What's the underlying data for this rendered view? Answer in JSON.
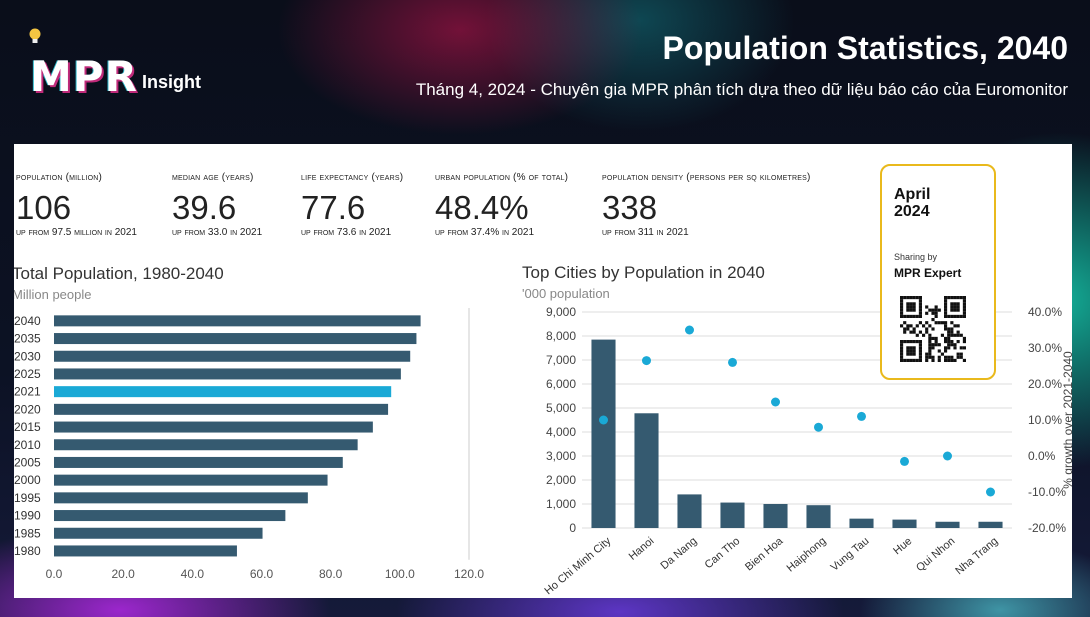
{
  "header": {
    "logo_text": "MPR",
    "logo_sub": "Insight",
    "title": "Population Statistics, 2040",
    "subtitle": "Tháng 4, 2024 - Chuyên gia MPR phân tích dựa theo dữ liệu báo cáo của Euromonitor"
  },
  "stats": [
    {
      "label": "Population (million)",
      "value": "106",
      "note": "Up from 97.5 million in 2021"
    },
    {
      "label": "Median Age (years)",
      "value": "39.6",
      "note": "Up from 33.0 in 2021"
    },
    {
      "label": "Life Expectancy (years)",
      "value": "77.6",
      "note": "Up from 73.6 in 2021"
    },
    {
      "label": "Urban population (% of total)",
      "value": "48.4%",
      "note": "Up from 37.4% in 2021"
    },
    {
      "label": "Population density (persons per sq kilometres)",
      "value": "338",
      "note": "Up from 311 in 2021"
    }
  ],
  "card": {
    "month": "April",
    "year": "2024",
    "sharing": "Sharing by",
    "expert": "MPR Expert"
  },
  "colors": {
    "bar": "#355a70",
    "highlight": "#1aa9d6",
    "dot": "#1aa9d6",
    "card_border": "#e9b91c",
    "grid": "#dddddd"
  },
  "chart_data": [
    {
      "type": "bar",
      "orientation": "horizontal",
      "title": "Total Population, 1980-2040",
      "subtitle": "Million people",
      "categories": [
        "2040",
        "2035",
        "2030",
        "2025",
        "2021",
        "2020",
        "2015",
        "2010",
        "2005",
        "2000",
        "1995",
        "1990",
        "1985",
        "1980"
      ],
      "values": [
        106,
        104.8,
        103,
        100.3,
        97.5,
        96.6,
        92.2,
        87.8,
        83.5,
        79.1,
        73.4,
        66.9,
        60.3,
        52.9
      ],
      "highlight_category": "2021",
      "xticks": [
        "0.0",
        "20.0",
        "40.0",
        "60.0",
        "80.0",
        "100.0",
        "120.0"
      ],
      "xlim": [
        0,
        120
      ]
    },
    {
      "type": "bar",
      "title": "Top Cities by Population in 2040",
      "subtitle": "'000 population",
      "categories": [
        "Ho Chi Minh City",
        "Hanoi",
        "Da Nang",
        "Can Tho",
        "Bien Hoa",
        "Haiphong",
        "Vung Tau",
        "Hue",
        "Qui Nhon",
        "Nha Trang"
      ],
      "series": [
        {
          "axis": "left",
          "type": "bar",
          "values": [
            7850,
            4780,
            1400,
            1060,
            1000,
            950,
            390,
            350,
            260,
            260
          ]
        },
        {
          "axis": "right",
          "type": "scatter",
          "values": [
            10.0,
            26.5,
            35.0,
            26.0,
            15.0,
            8.0,
            11.0,
            -1.5,
            0.0,
            -10.0
          ]
        }
      ],
      "yticks_left": [
        "0",
        "1,000",
        "2,000",
        "3,000",
        "4,000",
        "5,000",
        "6,000",
        "7,000",
        "8,000",
        "9,000"
      ],
      "ylim_left": [
        0,
        9000
      ],
      "yticks_right": [
        "-20.0%",
        "-10.0%",
        "0.0%",
        "10.0%",
        "20.0%",
        "30.0%",
        "40.0%"
      ],
      "ylim_right": [
        -20,
        40
      ],
      "ylabel_right": "% growth over 2021-2040"
    }
  ]
}
